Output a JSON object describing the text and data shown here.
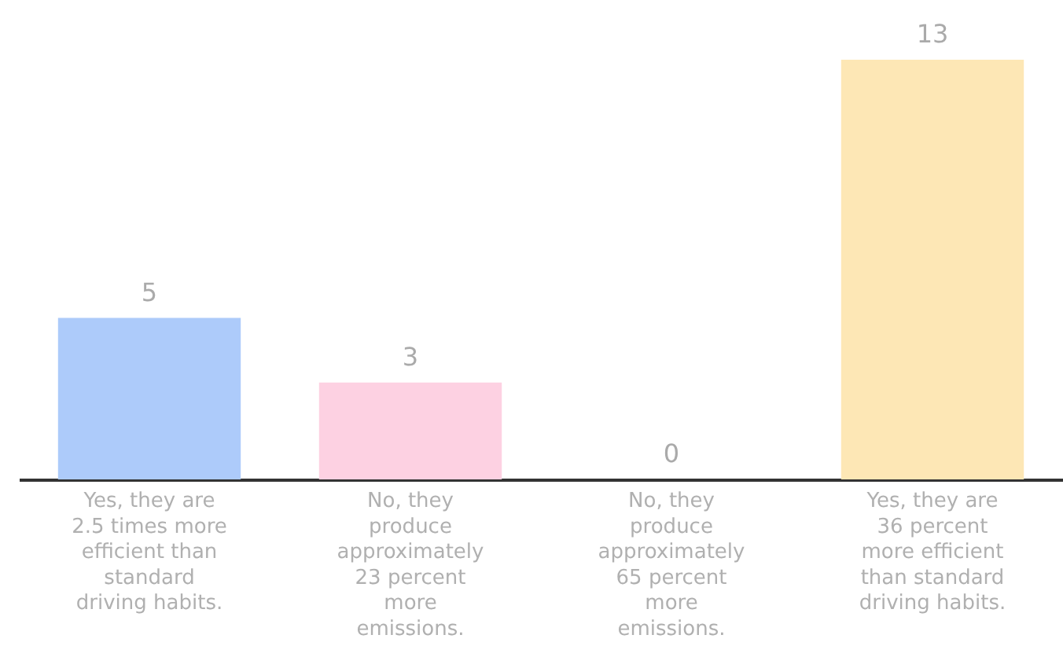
{
  "chart_data": {
    "type": "bar",
    "categories": [
      "Yes, they are 2.5 times more efficient than standard driving habits.",
      "No, they produce approximately 23 percent more emissions.",
      "No, they produce approximately 65 percent more emissions.",
      "Yes, they are 36 percent more efficient than standard driving habits."
    ],
    "values": [
      5,
      3,
      0,
      13
    ],
    "colors": [
      "#adcbfa",
      "#fdd1e2",
      "#adcbfa",
      "#fde7b5"
    ],
    "data_labels": true
  }
}
